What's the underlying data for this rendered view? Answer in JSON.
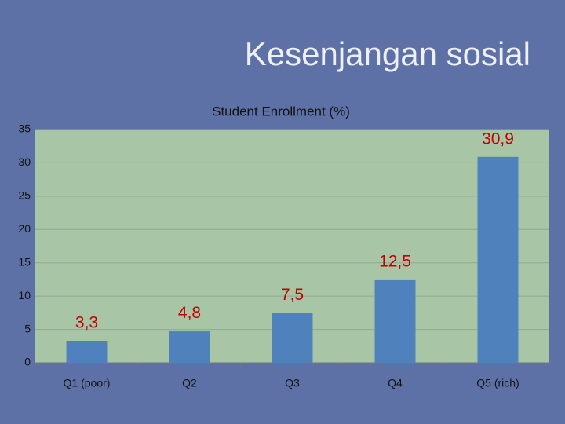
{
  "slide_title": "Kesenjangan sosial",
  "chart_data": {
    "type": "bar",
    "title": "Student Enrollment (%)",
    "categories": [
      "Q1 (poor)",
      "Q2",
      "Q3",
      "Q4",
      "Q5 (rich)"
    ],
    "values": [
      3.3,
      4.8,
      7.5,
      12.5,
      30.9
    ],
    "value_labels": [
      "3,3",
      "4,8",
      "7,5",
      "12,5",
      "30,9"
    ],
    "color": "#4f81bd",
    "ylim": [
      0,
      35
    ],
    "yticks": [
      0,
      5,
      10,
      15,
      20,
      25,
      30,
      35
    ],
    "grid": true
  }
}
